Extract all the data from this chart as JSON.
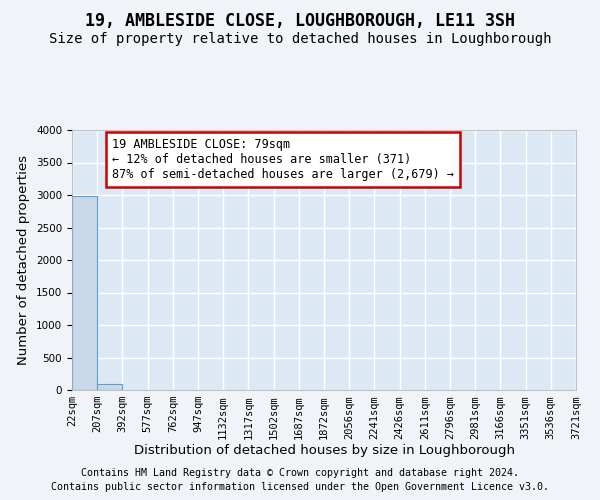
{
  "title": "19, AMBLESIDE CLOSE, LOUGHBOROUGH, LE11 3SH",
  "subtitle": "Size of property relative to detached houses in Loughborough",
  "xlabel": "Distribution of detached houses by size in Loughborough",
  "ylabel": "Number of detached properties",
  "footer_line1": "Contains HM Land Registry data © Crown copyright and database right 2024.",
  "footer_line2": "Contains public sector information licensed under the Open Government Licence v3.0.",
  "bin_labels": [
    "22sqm",
    "207sqm",
    "392sqm",
    "577sqm",
    "762sqm",
    "947sqm",
    "1132sqm",
    "1317sqm",
    "1502sqm",
    "1687sqm",
    "1872sqm",
    "2056sqm",
    "2241sqm",
    "2426sqm",
    "2611sqm",
    "2796sqm",
    "2981sqm",
    "3166sqm",
    "3351sqm",
    "3536sqm",
    "3721sqm"
  ],
  "bar_values": [
    2985,
    100,
    0,
    0,
    0,
    0,
    0,
    0,
    0,
    0,
    0,
    0,
    0,
    0,
    0,
    0,
    0,
    0,
    0,
    0
  ],
  "bar_color": "#c8d8e8",
  "bar_edge_color": "#5a9fd4",
  "ylim": [
    0,
    4000
  ],
  "yticks": [
    0,
    500,
    1000,
    1500,
    2000,
    2500,
    3000,
    3500,
    4000
  ],
  "annotation_title": "19 AMBLESIDE CLOSE: 79sqm",
  "annotation_line1": "← 12% of detached houses are smaller (371)",
  "annotation_line2": "87% of semi-detached houses are larger (2,679) →",
  "annotation_box_color": "#ffffff",
  "annotation_box_edge": "#cc0000",
  "plot_background_color": "#dce9f5",
  "fig_background_color": "#f0f4f8",
  "grid_color": "#ffffff",
  "title_fontsize": 12,
  "subtitle_fontsize": 10,
  "axis_label_fontsize": 9.5,
  "tick_fontsize": 7.5,
  "annotation_fontsize": 8.5,
  "footer_fontsize": 7.2
}
